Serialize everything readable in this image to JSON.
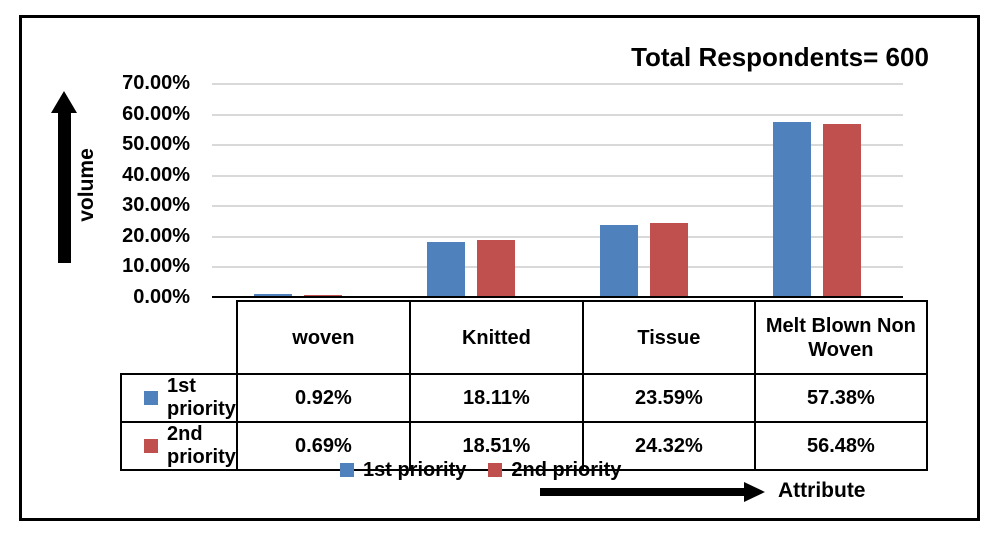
{
  "title": "Total Respondents= 600",
  "y_axis_title": "volume",
  "x_axis_title": "Attribute",
  "legend": {
    "items": [
      {
        "label": "1st priority",
        "color": "#4F81BD"
      },
      {
        "label": "2nd priority",
        "color": "#C0504D"
      }
    ]
  },
  "colors": {
    "series1": "#4F81BD",
    "series2": "#C0504D",
    "gridline": "#D9D9D9",
    "axis": "#000000"
  },
  "chart_data": {
    "type": "bar",
    "title": "Total Respondents= 600",
    "xlabel": "Attribute",
    "ylabel": "volume",
    "categories": [
      "woven",
      "Knitted",
      "Tissue",
      "Melt Blown Non Woven"
    ],
    "series": [
      {
        "name": "1st priority",
        "color": "#4F81BD",
        "values": [
          0.92,
          18.11,
          23.59,
          57.38
        ]
      },
      {
        "name": "2nd priority",
        "color": "#C0504D",
        "values": [
          0.69,
          18.51,
          24.32,
          56.48
        ]
      }
    ],
    "ylim": [
      0,
      70
    ],
    "ytick_step": 10,
    "yticks": [
      "70.00%",
      "60.00%",
      "50.00%",
      "40.00%",
      "30.00%",
      "20.00%",
      "10.00%",
      "0.00%"
    ],
    "grid": "horizontal",
    "legend_position": "bottom",
    "table": {
      "rows": [
        {
          "label": "1st priority",
          "marker_color": "#4F81BD",
          "values": [
            "0.92%",
            "18.11%",
            "23.59%",
            "57.38%"
          ]
        },
        {
          "label": "2nd priority",
          "marker_color": "#C0504D",
          "values": [
            "0.69%",
            "18.51%",
            "24.32%",
            "56.48%"
          ]
        }
      ]
    }
  }
}
